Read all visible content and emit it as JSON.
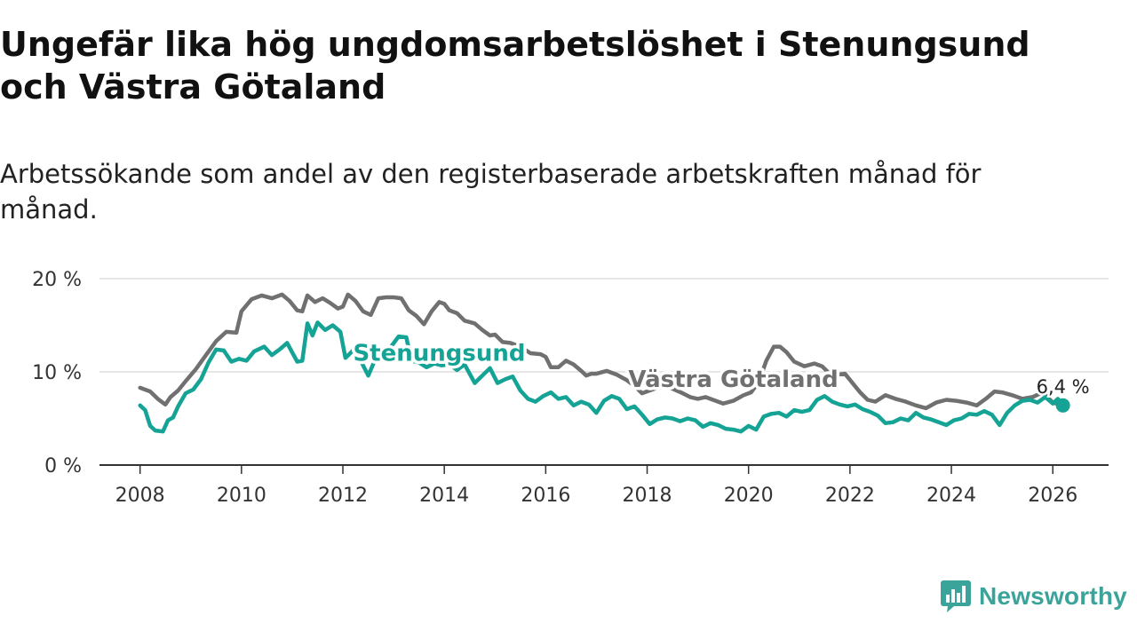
{
  "header": {
    "title": "Ungefär lika hög ungdomsarbetslöshet i Stenungsund och Västra Götaland",
    "subtitle": "Arbetssökande som andel av den registerbaserade arbetskraften månad för månad."
  },
  "brand": {
    "name": "Newsworthy"
  },
  "colors": {
    "stenungsund": "#14a394",
    "vastra_gotaland": "#707070",
    "grid": "#dddddd",
    "axis": "#333333",
    "brand": "#3aa39a"
  },
  "chart_data": {
    "type": "line",
    "title": "Ungefär lika hög ungdomsarbetslöshet i Stenungsund och Västra Götaland",
    "xlabel": "",
    "ylabel": "",
    "xlim": [
      2007.2,
      2027.1
    ],
    "ylim": [
      0,
      20
    ],
    "y_ticks": [
      0,
      10,
      20
    ],
    "y_tick_labels": [
      "0 %",
      "10 %",
      "20 %"
    ],
    "x_ticks": [
      2008,
      2010,
      2012,
      2014,
      2016,
      2018,
      2020,
      2022,
      2024,
      2026
    ],
    "x_tick_labels": [
      "2008",
      "2010",
      "2012",
      "2014",
      "2016",
      "2018",
      "2020",
      "2022",
      "2024",
      "2026"
    ],
    "grid": true,
    "last_value_label": "6,4 %",
    "series": [
      {
        "name": "Västra Götaland",
        "label": "Västra Götaland",
        "label_position": [
          2019.7,
          8.4
        ],
        "points": [
          [
            2008.0,
            8.3
          ],
          [
            2008.2,
            7.9
          ],
          [
            2008.35,
            7.1
          ],
          [
            2008.5,
            6.5
          ],
          [
            2008.6,
            7.3
          ],
          [
            2008.75,
            8.0
          ],
          [
            2008.9,
            9.0
          ],
          [
            2009.1,
            10.3
          ],
          [
            2009.3,
            11.8
          ],
          [
            2009.5,
            13.3
          ],
          [
            2009.7,
            14.3
          ],
          [
            2009.9,
            14.2
          ],
          [
            2010.0,
            16.5
          ],
          [
            2010.2,
            17.8
          ],
          [
            2010.4,
            18.2
          ],
          [
            2010.6,
            17.9
          ],
          [
            2010.8,
            18.3
          ],
          [
            2010.95,
            17.6
          ],
          [
            2011.1,
            16.6
          ],
          [
            2011.2,
            16.5
          ],
          [
            2011.3,
            18.2
          ],
          [
            2011.45,
            17.5
          ],
          [
            2011.6,
            17.9
          ],
          [
            2011.75,
            17.4
          ],
          [
            2011.9,
            16.8
          ],
          [
            2012.0,
            17.0
          ],
          [
            2012.1,
            18.3
          ],
          [
            2012.25,
            17.6
          ],
          [
            2012.4,
            16.5
          ],
          [
            2012.55,
            16.1
          ],
          [
            2012.7,
            17.9
          ],
          [
            2012.85,
            18.0
          ],
          [
            2013.0,
            18.0
          ],
          [
            2013.15,
            17.9
          ],
          [
            2013.3,
            16.6
          ],
          [
            2013.45,
            16.0
          ],
          [
            2013.6,
            15.1
          ],
          [
            2013.75,
            16.5
          ],
          [
            2013.9,
            17.5
          ],
          [
            2014.0,
            17.3
          ],
          [
            2014.1,
            16.6
          ],
          [
            2014.25,
            16.3
          ],
          [
            2014.4,
            15.5
          ],
          [
            2014.6,
            15.2
          ],
          [
            2014.75,
            14.5
          ],
          [
            2014.9,
            13.9
          ],
          [
            2015.0,
            14.0
          ],
          [
            2015.15,
            13.2
          ],
          [
            2015.3,
            13.1
          ],
          [
            2015.5,
            12.7
          ],
          [
            2015.7,
            12.0
          ],
          [
            2015.9,
            11.9
          ],
          [
            2016.0,
            11.6
          ],
          [
            2016.1,
            10.5
          ],
          [
            2016.25,
            10.5
          ],
          [
            2016.4,
            11.2
          ],
          [
            2016.55,
            10.8
          ],
          [
            2016.7,
            10.1
          ],
          [
            2016.8,
            9.6
          ],
          [
            2016.9,
            9.8
          ],
          [
            2017.0,
            9.8
          ],
          [
            2017.2,
            10.1
          ],
          [
            2017.4,
            9.7
          ],
          [
            2017.6,
            9.1
          ],
          [
            2017.75,
            8.5
          ],
          [
            2017.9,
            7.7
          ],
          [
            2018.05,
            8.0
          ],
          [
            2018.2,
            8.3
          ],
          [
            2018.35,
            8.4
          ],
          [
            2018.5,
            8.2
          ],
          [
            2018.7,
            7.7
          ],
          [
            2018.85,
            7.3
          ],
          [
            2019.0,
            7.1
          ],
          [
            2019.15,
            7.3
          ],
          [
            2019.3,
            7.0
          ],
          [
            2019.5,
            6.6
          ],
          [
            2019.7,
            6.9
          ],
          [
            2019.9,
            7.5
          ],
          [
            2020.05,
            7.8
          ],
          [
            2020.2,
            8.9
          ],
          [
            2020.35,
            11.2
          ],
          [
            2020.5,
            12.7
          ],
          [
            2020.62,
            12.7
          ],
          [
            2020.75,
            12.1
          ],
          [
            2020.9,
            11.1
          ],
          [
            2021.1,
            10.6
          ],
          [
            2021.3,
            10.9
          ],
          [
            2021.45,
            10.6
          ],
          [
            2021.6,
            9.8
          ],
          [
            2021.75,
            9.7
          ],
          [
            2021.9,
            9.8
          ],
          [
            2022.05,
            8.8
          ],
          [
            2022.2,
            7.8
          ],
          [
            2022.35,
            7.0
          ],
          [
            2022.5,
            6.8
          ],
          [
            2022.7,
            7.5
          ],
          [
            2022.9,
            7.1
          ],
          [
            2023.1,
            6.8
          ],
          [
            2023.3,
            6.4
          ],
          [
            2023.5,
            6.1
          ],
          [
            2023.7,
            6.7
          ],
          [
            2023.9,
            7.0
          ],
          [
            2024.1,
            6.9
          ],
          [
            2024.3,
            6.7
          ],
          [
            2024.5,
            6.4
          ],
          [
            2024.7,
            7.2
          ],
          [
            2024.85,
            7.9
          ],
          [
            2025.0,
            7.8
          ],
          [
            2025.2,
            7.5
          ],
          [
            2025.4,
            7.1
          ],
          [
            2025.6,
            7.3
          ],
          [
            2025.8,
            7.8
          ],
          [
            2026.0,
            6.7
          ],
          [
            2026.2,
            6.4
          ]
        ]
      },
      {
        "name": "Stenungsund",
        "label": "Stenungsund",
        "label_position": [
          2013.9,
          11.2
        ],
        "points": [
          [
            2008.0,
            6.4
          ],
          [
            2008.1,
            5.9
          ],
          [
            2008.2,
            4.2
          ],
          [
            2008.3,
            3.7
          ],
          [
            2008.45,
            3.6
          ],
          [
            2008.55,
            4.8
          ],
          [
            2008.65,
            5.1
          ],
          [
            2008.75,
            6.3
          ],
          [
            2008.9,
            7.7
          ],
          [
            2009.05,
            8.1
          ],
          [
            2009.2,
            9.2
          ],
          [
            2009.35,
            11.0
          ],
          [
            2009.5,
            12.4
          ],
          [
            2009.65,
            12.3
          ],
          [
            2009.8,
            11.1
          ],
          [
            2009.95,
            11.4
          ],
          [
            2010.1,
            11.2
          ],
          [
            2010.25,
            12.2
          ],
          [
            2010.45,
            12.7
          ],
          [
            2010.6,
            11.8
          ],
          [
            2010.75,
            12.4
          ],
          [
            2010.9,
            13.1
          ],
          [
            2011.1,
            11.1
          ],
          [
            2011.2,
            11.2
          ],
          [
            2011.3,
            15.2
          ],
          [
            2011.4,
            13.9
          ],
          [
            2011.5,
            15.3
          ],
          [
            2011.65,
            14.5
          ],
          [
            2011.8,
            15.0
          ],
          [
            2011.95,
            14.3
          ],
          [
            2012.05,
            11.5
          ],
          [
            2012.2,
            12.3
          ],
          [
            2012.35,
            11.2
          ],
          [
            2012.5,
            9.6
          ],
          [
            2012.65,
            11.5
          ],
          [
            2012.8,
            12.3
          ],
          [
            2012.95,
            12.7
          ],
          [
            2013.1,
            13.8
          ],
          [
            2013.25,
            13.7
          ],
          [
            2013.35,
            11.2
          ],
          [
            2013.5,
            11.0
          ],
          [
            2013.65,
            10.5
          ],
          [
            2013.8,
            10.9
          ],
          [
            2013.95,
            10.7
          ],
          [
            2014.1,
            10.8
          ],
          [
            2014.25,
            10.2
          ],
          [
            2014.4,
            10.8
          ],
          [
            2014.6,
            8.8
          ],
          [
            2014.75,
            9.6
          ],
          [
            2014.9,
            10.4
          ],
          [
            2015.05,
            8.8
          ],
          [
            2015.2,
            9.2
          ],
          [
            2015.35,
            9.5
          ],
          [
            2015.5,
            8.0
          ],
          [
            2015.65,
            7.1
          ],
          [
            2015.8,
            6.8
          ],
          [
            2015.95,
            7.4
          ],
          [
            2016.1,
            7.8
          ],
          [
            2016.25,
            7.1
          ],
          [
            2016.4,
            7.3
          ],
          [
            2016.55,
            6.4
          ],
          [
            2016.7,
            6.8
          ],
          [
            2016.85,
            6.5
          ],
          [
            2017.0,
            5.6
          ],
          [
            2017.15,
            6.9
          ],
          [
            2017.3,
            7.4
          ],
          [
            2017.45,
            7.1
          ],
          [
            2017.6,
            6.0
          ],
          [
            2017.75,
            6.3
          ],
          [
            2017.9,
            5.4
          ],
          [
            2018.05,
            4.4
          ],
          [
            2018.2,
            4.9
          ],
          [
            2018.35,
            5.1
          ],
          [
            2018.5,
            5.0
          ],
          [
            2018.65,
            4.7
          ],
          [
            2018.8,
            5.0
          ],
          [
            2018.95,
            4.8
          ],
          [
            2019.1,
            4.1
          ],
          [
            2019.25,
            4.5
          ],
          [
            2019.4,
            4.3
          ],
          [
            2019.55,
            3.9
          ],
          [
            2019.7,
            3.8
          ],
          [
            2019.85,
            3.6
          ],
          [
            2020.0,
            4.2
          ],
          [
            2020.15,
            3.8
          ],
          [
            2020.3,
            5.2
          ],
          [
            2020.45,
            5.5
          ],
          [
            2020.6,
            5.6
          ],
          [
            2020.75,
            5.2
          ],
          [
            2020.9,
            5.9
          ],
          [
            2021.05,
            5.7
          ],
          [
            2021.2,
            5.9
          ],
          [
            2021.35,
            7.0
          ],
          [
            2021.5,
            7.4
          ],
          [
            2021.65,
            6.8
          ],
          [
            2021.8,
            6.5
          ],
          [
            2021.95,
            6.3
          ],
          [
            2022.1,
            6.5
          ],
          [
            2022.25,
            6.0
          ],
          [
            2022.4,
            5.7
          ],
          [
            2022.55,
            5.3
          ],
          [
            2022.7,
            4.5
          ],
          [
            2022.85,
            4.6
          ],
          [
            2023.0,
            5.0
          ],
          [
            2023.15,
            4.8
          ],
          [
            2023.3,
            5.6
          ],
          [
            2023.45,
            5.1
          ],
          [
            2023.6,
            4.9
          ],
          [
            2023.75,
            4.6
          ],
          [
            2023.9,
            4.3
          ],
          [
            2024.05,
            4.8
          ],
          [
            2024.2,
            5.0
          ],
          [
            2024.35,
            5.5
          ],
          [
            2024.5,
            5.4
          ],
          [
            2024.65,
            5.8
          ],
          [
            2024.8,
            5.4
          ],
          [
            2024.95,
            4.3
          ],
          [
            2025.1,
            5.6
          ],
          [
            2025.25,
            6.4
          ],
          [
            2025.4,
            6.9
          ],
          [
            2025.55,
            7.0
          ],
          [
            2025.7,
            6.7
          ],
          [
            2025.85,
            7.3
          ],
          [
            2026.0,
            6.6
          ],
          [
            2026.1,
            7.1
          ],
          [
            2026.2,
            6.4
          ]
        ]
      }
    ]
  }
}
